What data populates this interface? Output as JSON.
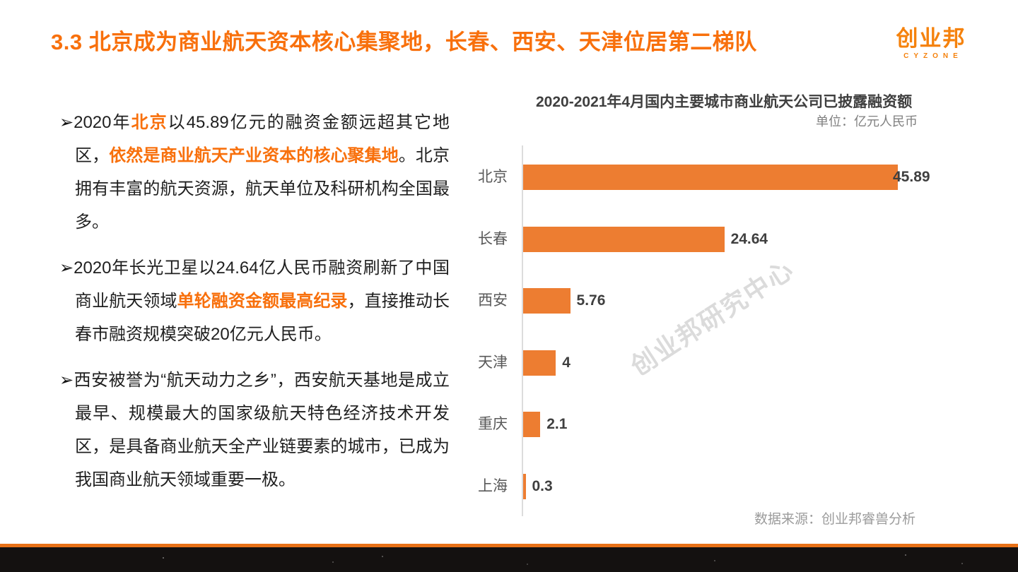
{
  "header": {
    "title": "3.3 北京成为商业航天资本核心集聚地，长春、西安、天津位居第二梯队",
    "logo_cn": "创业邦",
    "logo_en": "CYZONE"
  },
  "bullet_marker": "➢",
  "bullets": [
    {
      "segments": [
        {
          "text": "2020年",
          "highlight": false
        },
        {
          "text": "北京",
          "highlight": true
        },
        {
          "text": "以45.89亿元的融资金额远超其它地区，",
          "highlight": false
        },
        {
          "text": "依然是商业航天产业资本的核心聚集地",
          "highlight": true
        },
        {
          "text": "。北京拥有丰富的航天资源，航天单位及科研机构全国最多。",
          "highlight": false
        }
      ]
    },
    {
      "segments": [
        {
          "text": "2020年长光卫星以24.64亿人民币融资刷新了中国商业航天领域",
          "highlight": false
        },
        {
          "text": "单轮融资金额最高纪录",
          "highlight": true
        },
        {
          "text": "，直接推动长春市融资规模突破20亿元人民币。",
          "highlight": false
        }
      ]
    },
    {
      "segments": [
        {
          "text": "西安被誉为“航天动力之乡”，西安航天基地是成立最早、规模最大的国家级航天特色经济技术开发区，是具备商业航天全产业链要素的城市，已成为我国商业航天领域重要一极。",
          "highlight": false
        }
      ]
    }
  ],
  "chart_data": {
    "type": "bar",
    "orientation": "horizontal",
    "title": "2020-2021年4月国内主要城市商业航天公司已披露融资额",
    "unit_label": "单位：亿元人民币",
    "categories": [
      "北京",
      "长春",
      "西安",
      "天津",
      "重庆",
      "上海"
    ],
    "values": [
      45.89,
      24.64,
      5.76,
      4,
      2.1,
      0.3
    ],
    "value_labels": [
      "45.89",
      "24.64",
      "5.76",
      "4",
      "2.1",
      "0.3"
    ],
    "xlim": [
      0,
      46
    ],
    "grid": false,
    "legend": false,
    "bar_color": "#ED7D31",
    "watermark": "创业邦研究中心",
    "source": "数据来源：创业邦睿兽分析"
  },
  "colors": {
    "accent": "#F8700C",
    "bar": "#ED7D31",
    "footer_accent": "#E87117",
    "footer_bar": "#141110"
  }
}
